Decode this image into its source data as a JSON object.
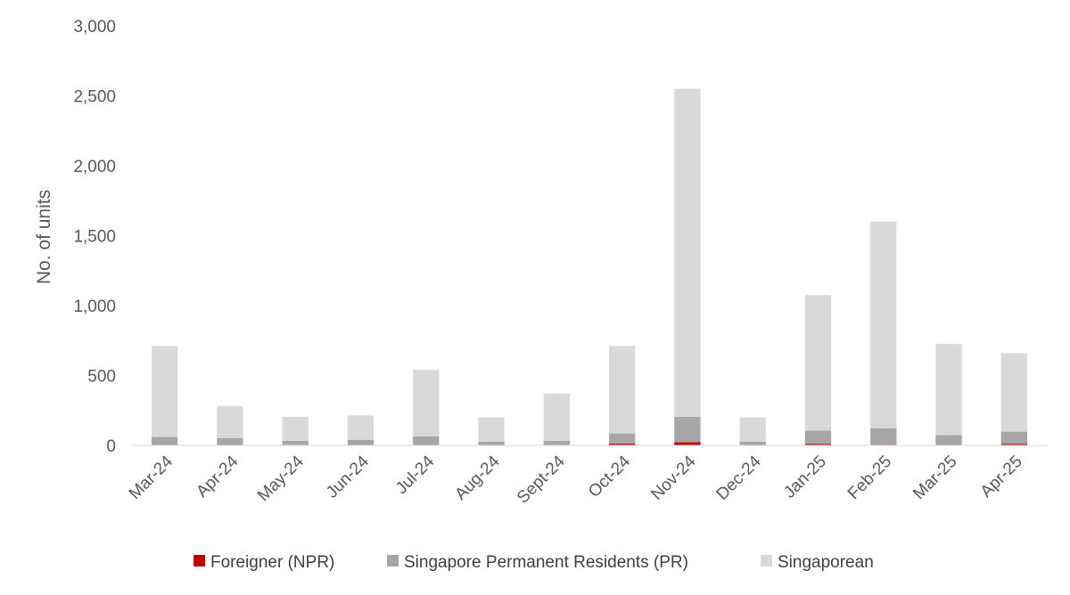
{
  "chart_data": {
    "type": "bar",
    "stacked": true,
    "categories": [
      "Mar-24",
      "Apr-24",
      "May-24",
      "Jun-24",
      "Jul-24",
      "Aug-24",
      "Sept-24",
      "Oct-24",
      "Nov-24",
      "Dec-24",
      "Jan-25",
      "Feb-25",
      "Mar-25",
      "Apr-25"
    ],
    "series": [
      {
        "name": "Foreigner (NPR)",
        "color": "#c00000",
        "values": [
          4,
          2,
          2,
          2,
          3,
          2,
          3,
          12,
          22,
          2,
          10,
          5,
          3,
          11
        ]
      },
      {
        "name": "Singapore Permanent Residents (PR)",
        "color": "#a6a6a6",
        "values": [
          56,
          49,
          31,
          38,
          62,
          24,
          30,
          73,
          183,
          24,
          95,
          117,
          71,
          87
        ]
      },
      {
        "name": "Singaporean",
        "color": "#d9d9d9",
        "values": [
          650,
          229,
          172,
          175,
          475,
          174,
          337,
          625,
          2345,
          174,
          970,
          1478,
          651,
          562
        ]
      }
    ],
    "ylabel": "No. of units",
    "xlabel": "",
    "title": "",
    "ylim": [
      0,
      3000
    ],
    "yticks": [
      0,
      500,
      1000,
      1500,
      2000,
      2500,
      3000
    ],
    "ytick_labels": [
      "0",
      "500",
      "1,000",
      "1,500",
      "2,000",
      "2,500",
      "3,000"
    ],
    "grid": false,
    "legend": "bottom"
  }
}
